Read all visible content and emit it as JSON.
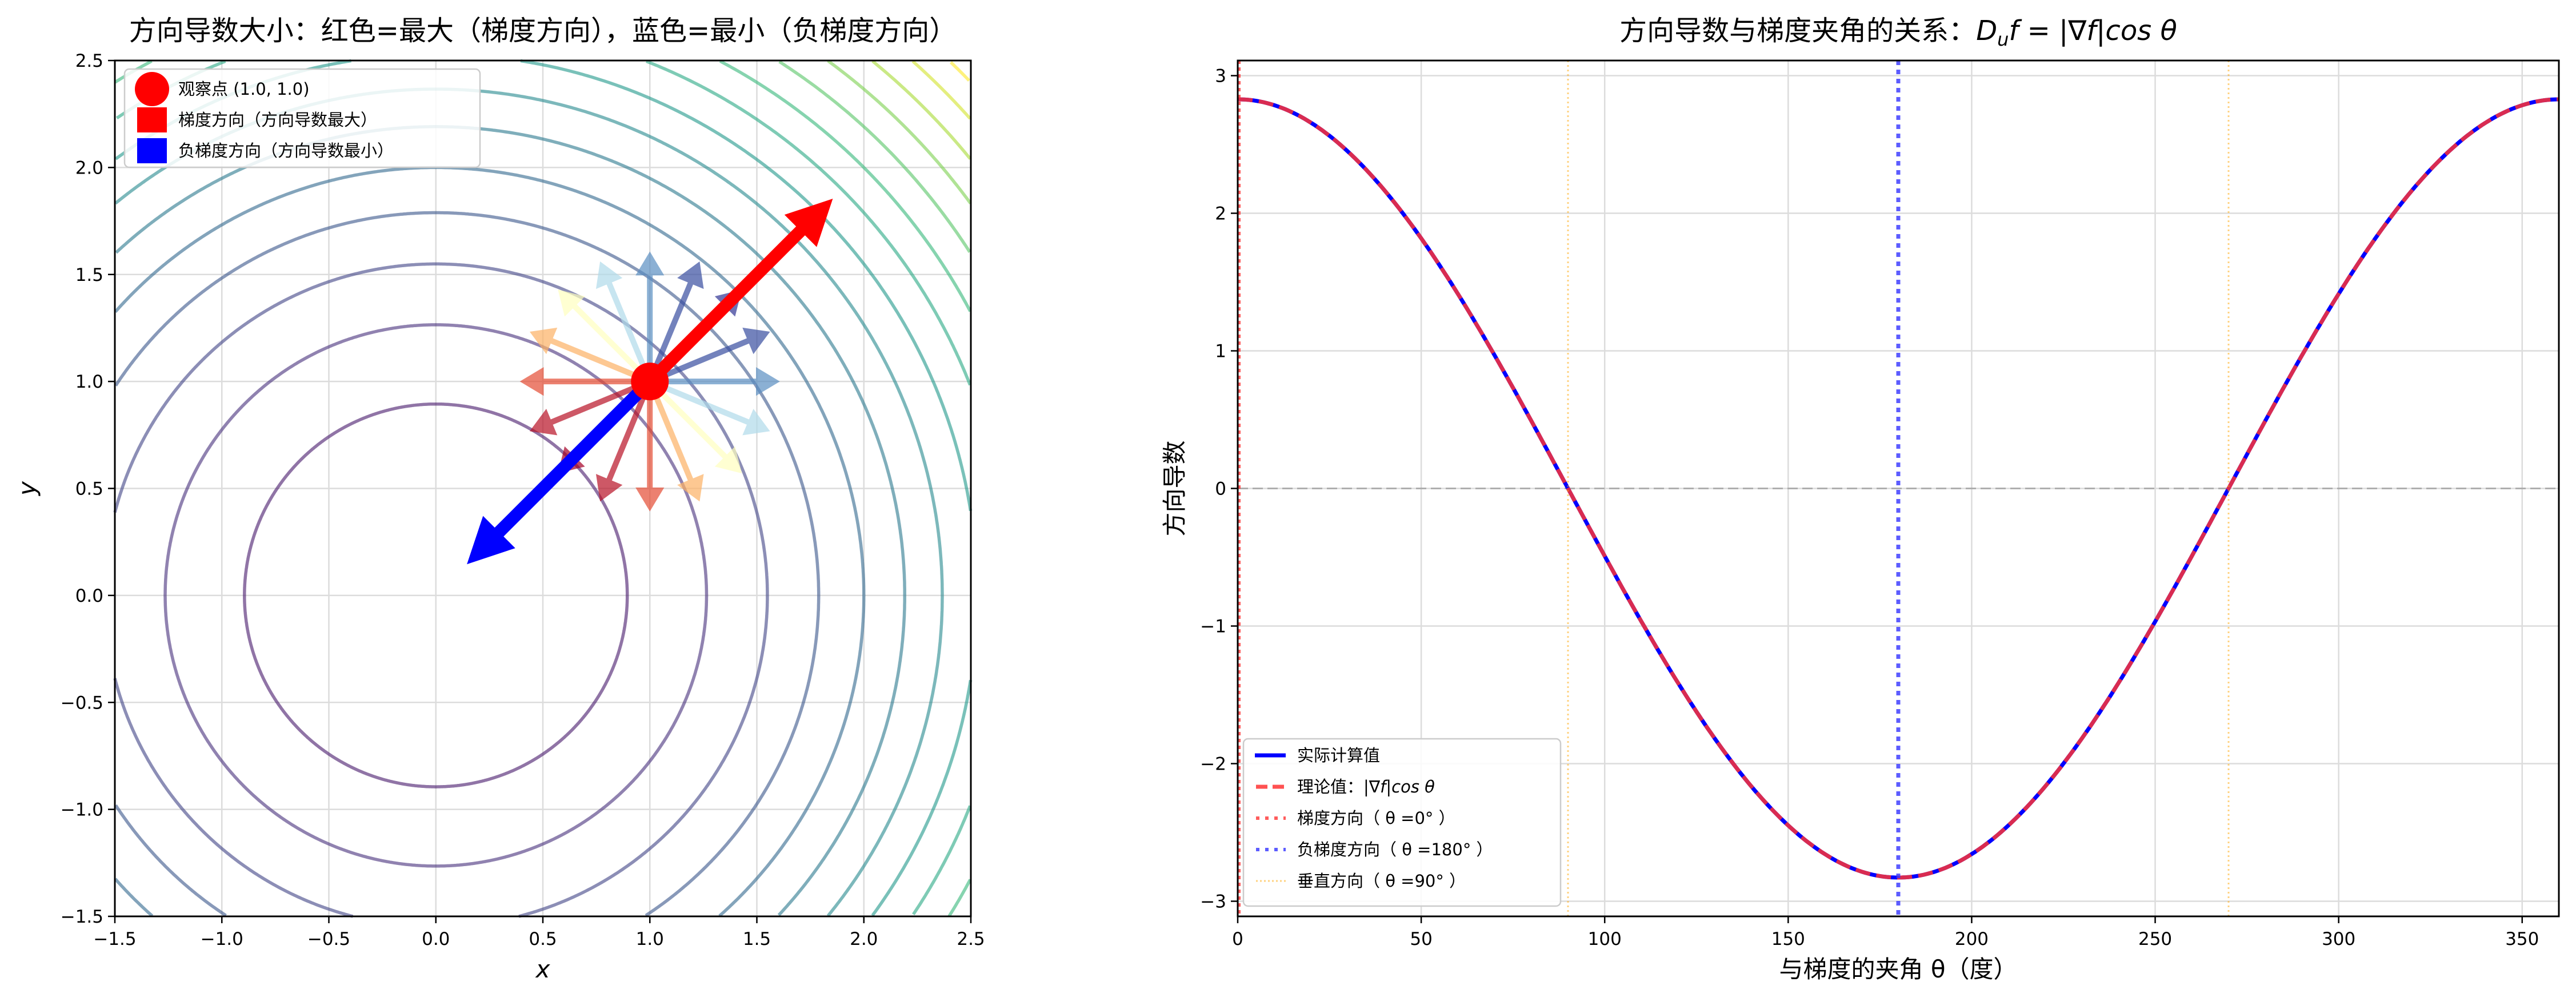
{
  "chart_data": [
    {
      "type": "contour",
      "title": "方向导数大小：红色=最大（梯度方向），蓝色=最小（负梯度方向）",
      "xlabel": "x",
      "ylabel": "y",
      "xlim": [
        -1.5,
        2.5
      ],
      "ylim": [
        -1.5,
        2.5
      ],
      "xticks": [
        "−1.5",
        "−1.0",
        "−0.5",
        "0.0",
        "0.5",
        "1.0",
        "1.5",
        "2.0",
        "2.5"
      ],
      "xtick_values": [
        -1.5,
        -1.0,
        -0.5,
        0.0,
        0.5,
        1.0,
        1.5,
        2.0,
        2.5
      ],
      "yticks": [
        "−1.5",
        "−1.0",
        "−0.5",
        "0.0",
        "0.5",
        "1.0",
        "1.5",
        "2.0",
        "2.5"
      ],
      "ytick_values": [
        -1.5,
        -1.0,
        -0.5,
        0.0,
        0.5,
        1.0,
        1.5,
        2.0,
        2.5
      ],
      "grid": true,
      "function": "x^2 + y^2",
      "contour_levels": [
        0.8,
        1.6,
        2.4,
        3.2,
        4.0,
        4.8,
        5.6,
        6.4,
        7.2,
        8.0,
        8.8,
        9.6,
        10.4,
        11.2,
        12.0
      ],
      "contour_level_range": [
        0,
        12.0
      ],
      "observation_point": [
        1.0,
        1.0
      ],
      "gradient": [
        2.0,
        2.0
      ],
      "direction_arrows": {
        "count": 16,
        "step_deg": 22.5,
        "length": 0.5,
        "colormap": "RdYlBu",
        "value_range": [
          -2.83,
          2.83
        ]
      },
      "gradient_arrow_length": 1.2,
      "legend_position": "upper-left",
      "legend": [
        {
          "label": "观察点 (1.0, 1.0)",
          "marker": "circle",
          "color": "#ff0000"
        },
        {
          "label": "梯度方向（方向导数最大）",
          "marker": "patch",
          "color": "#ff0000"
        },
        {
          "label": "负梯度方向（方向导数最小）",
          "marker": "patch",
          "color": "#0000ff"
        }
      ]
    },
    {
      "type": "line",
      "title_prefix": "方向导数与梯度夹角的关系：",
      "title_math": {
        "D": "D",
        "sub": "u",
        "rest": "f = |∇f|cos θ"
      },
      "xlabel": "与梯度的夹角 θ（度）",
      "ylabel": "方向导数",
      "xlim": [
        0,
        360
      ],
      "ylim": [
        -3.11,
        3.11
      ],
      "xticks": [
        "0",
        "50",
        "100",
        "150",
        "200",
        "250",
        "300",
        "350"
      ],
      "xtick_values": [
        0,
        50,
        100,
        150,
        200,
        250,
        300,
        350
      ],
      "yticks": [
        "−3",
        "−2",
        "−1",
        "0",
        "1",
        "2",
        "3"
      ],
      "ytick_values": [
        -3,
        -2,
        -1,
        0,
        1,
        2,
        3
      ],
      "grid": true,
      "amplitude": 2.828,
      "series": [
        {
          "name": "实际计算值",
          "formula": "2.828*cos(θ)",
          "color": "#0000ff",
          "style": "solid"
        },
        {
          "name": "理论值：|∇f|cos θ",
          "formula": "2.828*cos(θ)",
          "color": "#ff3333",
          "style": "dashed"
        }
      ],
      "reference_lines": [
        {
          "name": "梯度方向（θ=0°）",
          "x": 0,
          "color": "#ff3333",
          "style": "dotted"
        },
        {
          "name": "负梯度方向（θ=180°）",
          "x": 180,
          "color": "#3333ff",
          "style": "dotted"
        },
        {
          "name": "垂直方向（θ=90°）",
          "x": [
            90,
            270
          ],
          "color": "#ffa500",
          "style": "dotted"
        },
        {
          "name": "zero",
          "y": 0,
          "color": "#999999",
          "style": "dashed"
        }
      ],
      "legend_position": "lower-left",
      "legend": [
        {
          "label": "实际计算值"
        },
        {
          "label_prefix": "理论值：",
          "label_math": "|∇f|cos θ"
        },
        {
          "label": "梯度方向（ θ =0°  ）"
        },
        {
          "label": "负梯度方向（ θ =180°  ）"
        },
        {
          "label": "垂直方向（ θ =90°  ）"
        }
      ]
    }
  ]
}
